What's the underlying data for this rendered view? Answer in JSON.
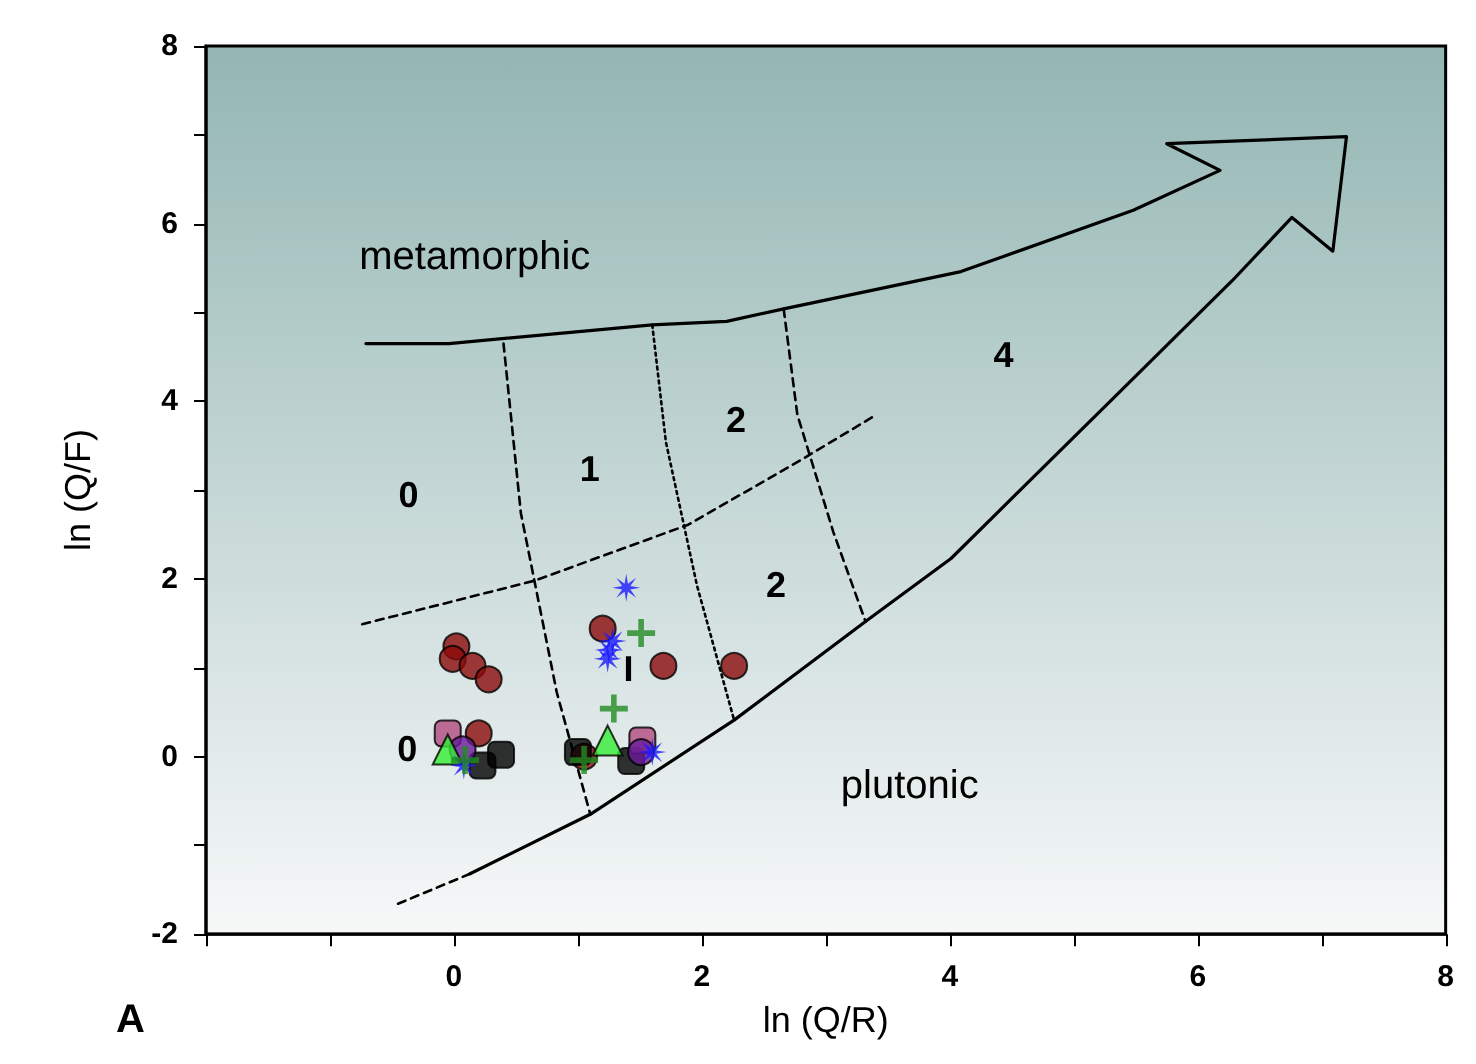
{
  "chart_data": {
    "type": "scatter",
    "xlabel": "ln (Q/R)",
    "ylabel": "ln (Q/F)",
    "xlim": [
      -2,
      8
    ],
    "ylim": [
      -2,
      8
    ],
    "xticks": [
      {
        "value": -2,
        "label": null
      },
      {
        "value": -1,
        "label": null
      },
      0,
      {
        "value": 1,
        "label": null
      },
      2,
      {
        "value": 3,
        "label": null
      },
      4,
      {
        "value": 5,
        "label": null
      },
      6,
      {
        "value": 7,
        "label": null
      },
      8
    ],
    "yticks": [
      -2,
      {
        "value": -1,
        "label": null
      },
      0,
      {
        "value": 1,
        "label": null
      },
      2,
      {
        "value": 3,
        "label": null
      },
      4,
      {
        "value": 5,
        "label": null
      },
      6,
      {
        "value": 7,
        "label": null
      },
      8
    ],
    "grid": false,
    "annotations": [
      "metamorphic",
      "plutonic",
      "0",
      "1",
      "2",
      "2",
      "4",
      "0",
      "I",
      "A"
    ],
    "series": [
      {
        "type": "line",
        "color": "#000000",
        "line_style": "solid",
        "marker": "none",
        "x": [
          -0.71,
          -0.04,
          1.6,
          2.2,
          2.66,
          4.09,
          5.48,
          6.18,
          5.75,
          7.2,
          7.09,
          6.76,
          6.28,
          5.33,
          4.01,
          3.32,
          2.26,
          1.1,
          0.13
        ],
        "values": [
          4.65,
          4.65,
          4.86,
          4.9,
          5.04,
          5.46,
          6.15,
          6.6,
          6.9,
          6.98,
          5.69,
          6.07,
          5.36,
          4.05,
          2.23,
          1.52,
          0.41,
          -0.65,
          -1.32
        ]
      },
      {
        "type": "line",
        "color": "#000000",
        "line_style": "dashed",
        "marker": "none",
        "x": [
          0.13,
          -0.49
        ],
        "values": [
          -1.32,
          -1.68
        ]
      },
      {
        "type": "line",
        "color": "#000000",
        "line_style": "dashed",
        "marker": "none",
        "x": [
          -0.74,
          0.65,
          1.89,
          2.8,
          3.41
        ],
        "values": [
          1.49,
          1.98,
          2.61,
          3.34,
          3.85
        ]
      },
      {
        "type": "line",
        "color": "#000000",
        "line_style": "dashed",
        "marker": "none",
        "x": [
          0.4,
          0.54,
          0.83,
          1.1
        ],
        "values": [
          4.65,
          2.74,
          0.72,
          -0.65
        ]
      },
      {
        "type": "line",
        "color": "#000000",
        "line_style": "dotted",
        "marker": "none",
        "x": [
          1.6,
          1.71,
          1.96,
          2.26
        ],
        "values": [
          4.86,
          3.54,
          1.93,
          0.41
        ]
      },
      {
        "type": "line",
        "color": "#000000",
        "line_style": "dashed",
        "marker": "none",
        "x": [
          2.66,
          2.77,
          3.06,
          3.32
        ],
        "values": [
          5.04,
          3.85,
          2.53,
          1.52
        ]
      },
      {
        "color": "#8b0a0a",
        "marker": "circle",
        "x": [
          0.02,
          -0.01,
          0.15,
          0.28,
          1.2,
          1.69,
          2.26,
          0.2,
          1.05
        ],
        "values": [
          1.24,
          1.1,
          1.02,
          0.87,
          1.44,
          1.02,
          1.02,
          0.26,
          0.0
        ]
      },
      {
        "color": "#000000",
        "marker": "square",
        "x": [
          0.23,
          0.38,
          1.0,
          1.43
        ],
        "values": [
          -0.1,
          0.02,
          0.05,
          -0.05
        ]
      },
      {
        "color": "#b04a80",
        "marker": "square",
        "x": [
          -0.05,
          1.52
        ],
        "values": [
          0.26,
          0.18
        ]
      },
      {
        "color": "#6a1a9a",
        "x": [
          0.07,
          1.51
        ],
        "values": [
          0.08,
          0.05
        ]
      },
      {
        "color": "#33ee33",
        "marker": "triangle",
        "x": [
          -0.05,
          1.24
        ],
        "values": [
          0.08,
          0.18
        ]
      },
      {
        "color": "#1a1aff",
        "marker": "star",
        "x": [
          1.39,
          1.28,
          1.25,
          1.24,
          0.08,
          1.6
        ],
        "values": [
          1.9,
          1.3,
          1.2,
          1.1,
          -0.1,
          0.05
        ]
      },
      {
        "color": "#228b22",
        "marker": "cross",
        "x": [
          1.51,
          1.29,
          1.05,
          0.09
        ],
        "values": [
          1.39,
          0.54,
          -0.04,
          -0.04
        ]
      }
    ]
  }
}
